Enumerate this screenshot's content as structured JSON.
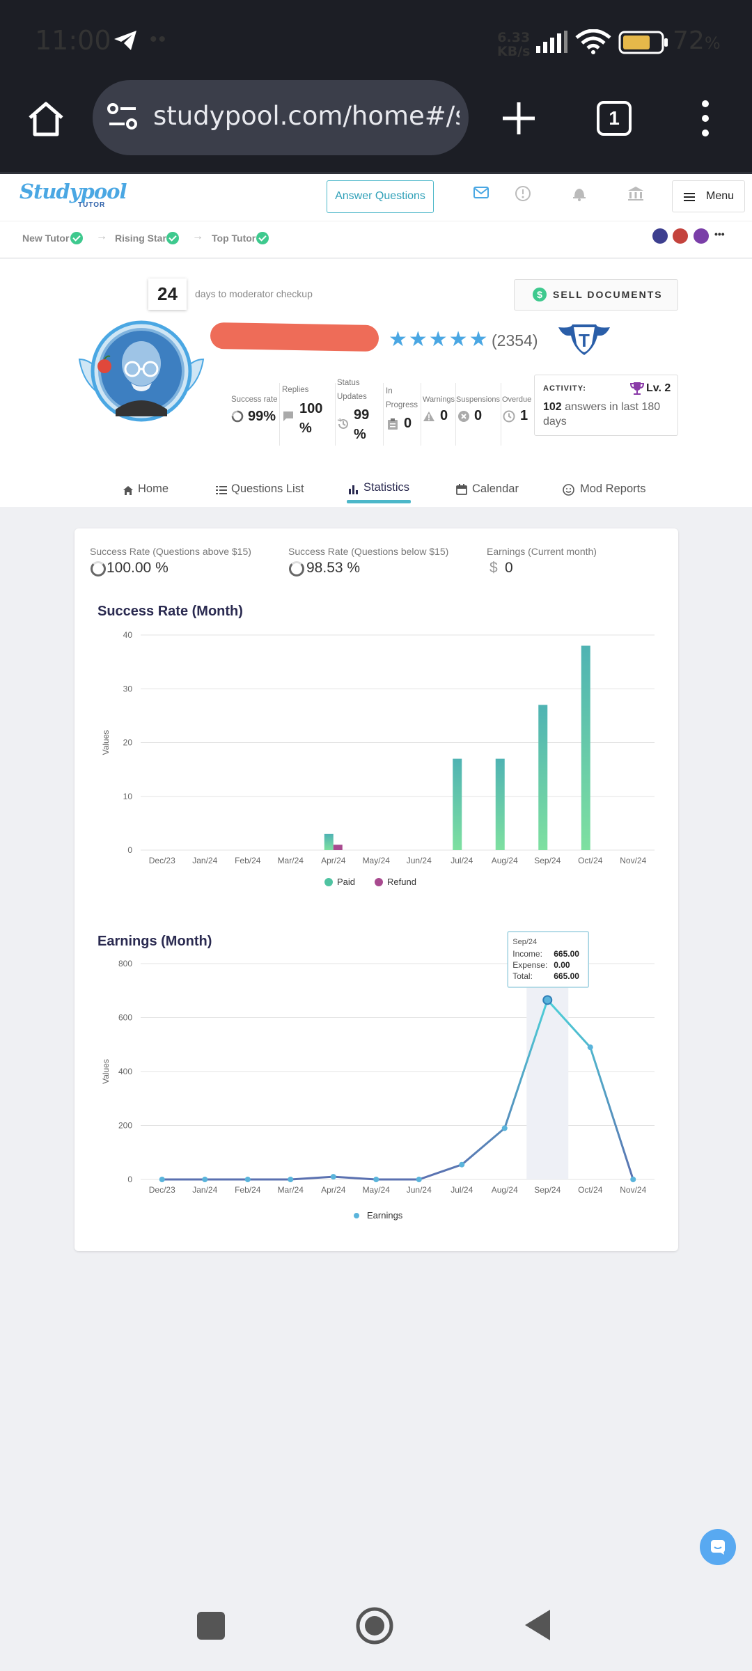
{
  "status_bar": {
    "time": "11:00",
    "net_speed_value": "6.33",
    "net_speed_unit": "KB/s",
    "battery": "72",
    "battery_unit": "%"
  },
  "browser": {
    "url": "studypool.com/home#/sta",
    "tab_count": "1"
  },
  "header": {
    "logo": "Studypool",
    "logo_sub": "TUTOR",
    "answer_button": "Answer Questions",
    "menu_label": "Menu"
  },
  "breadcrumb": {
    "items": [
      "New Tutor",
      "Rising Star",
      "Top Tutor"
    ],
    "more": "•••"
  },
  "profile": {
    "days": "24",
    "days_text": "days to moderator checkup",
    "sell_button": "SELL DOCUMENTS",
    "stars": "★★★★★",
    "rating_count": "(2354)",
    "stats": {
      "success_label": "Success rate",
      "success_value": "99%",
      "replies_label": "Replies",
      "replies_value_1": "100",
      "replies_value_2": "%",
      "status_label_1": "Status",
      "status_label_2": "Updates",
      "status_value_1": "99",
      "status_value_2": "%",
      "progress_label_1": "In",
      "progress_label_2": "Progress",
      "progress_value": "0",
      "warnings_label": "Warnings",
      "warnings_value": "0",
      "suspensions_label": "Suspensions",
      "suspensions_value": "0",
      "overdue_label": "Overdue",
      "overdue_value": "1"
    },
    "activity": {
      "title": "ACTIVITY:",
      "level": "Lv. 2",
      "count": "102",
      "text": "answers in last 180 days"
    }
  },
  "tabs": [
    {
      "label": "Home",
      "icon": "home-icon"
    },
    {
      "label": "Questions List",
      "icon": "list-icon"
    },
    {
      "label": "Statistics",
      "icon": "bar-chart-icon",
      "active": true
    },
    {
      "label": "Calendar",
      "icon": "calendar-icon"
    },
    {
      "label": "Mod Reports",
      "icon": "smiley-icon"
    }
  ],
  "summary": {
    "above_label": "Success Rate (Questions above $15)",
    "above_value": "100.00 %",
    "below_label": "Success Rate (Questions below $15)",
    "below_value": "98.53 %",
    "earnings_label": "Earnings (Current month)",
    "earnings_currency": "$",
    "earnings_value": "0"
  },
  "chart_data": [
    {
      "type": "bar",
      "title": "Success Rate (Month)",
      "ylabel": "Values",
      "categories": [
        "Dec/23",
        "Jan/24",
        "Feb/24",
        "Mar/24",
        "Apr/24",
        "May/24",
        "Jun/24",
        "Jul/24",
        "Aug/24",
        "Sep/24",
        "Oct/24",
        "Nov/24"
      ],
      "ylim": [
        0,
        40
      ],
      "yticks": [
        0,
        10,
        20,
        30,
        40
      ],
      "series": [
        {
          "name": "Paid",
          "color": "#4fc3a1",
          "values": [
            0,
            0,
            0,
            0,
            3,
            0,
            0,
            17,
            17,
            27,
            38,
            0
          ]
        },
        {
          "name": "Refund",
          "color": "#a84a8f",
          "values": [
            0,
            0,
            0,
            0,
            1,
            0,
            0,
            0,
            0,
            0,
            0,
            0
          ]
        }
      ],
      "legend": "bottom",
      "grid": true
    },
    {
      "type": "line",
      "title": "Earnings (Month)",
      "ylabel": "Values",
      "categories": [
        "Dec/23",
        "Jan/24",
        "Feb/24",
        "Mar/24",
        "Apr/24",
        "May/24",
        "Jun/24",
        "Jul/24",
        "Aug/24",
        "Sep/24",
        "Oct/24",
        "Nov/24"
      ],
      "ylim": [
        0,
        800
      ],
      "yticks": [
        0,
        200,
        400,
        600,
        800
      ],
      "series": [
        {
          "name": "Earnings",
          "color": "#4db8d0",
          "values": [
            0,
            0,
            0,
            0,
            10,
            0,
            0,
            55,
            190,
            665,
            490,
            0
          ]
        }
      ],
      "legend": "bottom",
      "grid": true,
      "tooltip": {
        "title": "Sep/24",
        "income_label": "Income:",
        "income": "665.00",
        "expense_label": "Expense:",
        "expense": "0.00",
        "total_label": "Total:",
        "total": "665.00"
      }
    }
  ]
}
